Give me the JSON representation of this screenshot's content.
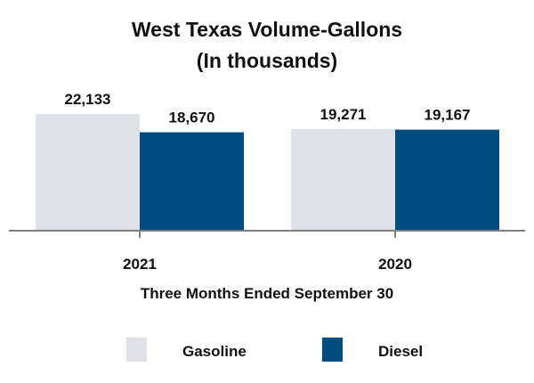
{
  "chart_data": {
    "type": "bar",
    "title": "West Texas Volume-Gallons",
    "subtitle": "(In thousands)",
    "xlabel": "Three Months Ended September 30",
    "ylabel": "",
    "categories": [
      "2021",
      "2020"
    ],
    "series": [
      {
        "name": "Gasoline",
        "color": "#e0e1e6",
        "values": [
          22133,
          19271
        ],
        "labels": [
          "22,133",
          "19,271"
        ]
      },
      {
        "name": "Diesel",
        "color": "#004b80",
        "values": [
          18670,
          19167
        ],
        "labels": [
          "18,670",
          "19,167"
        ]
      }
    ],
    "ylim": [
      0,
      22133
    ],
    "grid": false,
    "legend_position": "bottom",
    "axis_color": "#7f7f7f"
  }
}
